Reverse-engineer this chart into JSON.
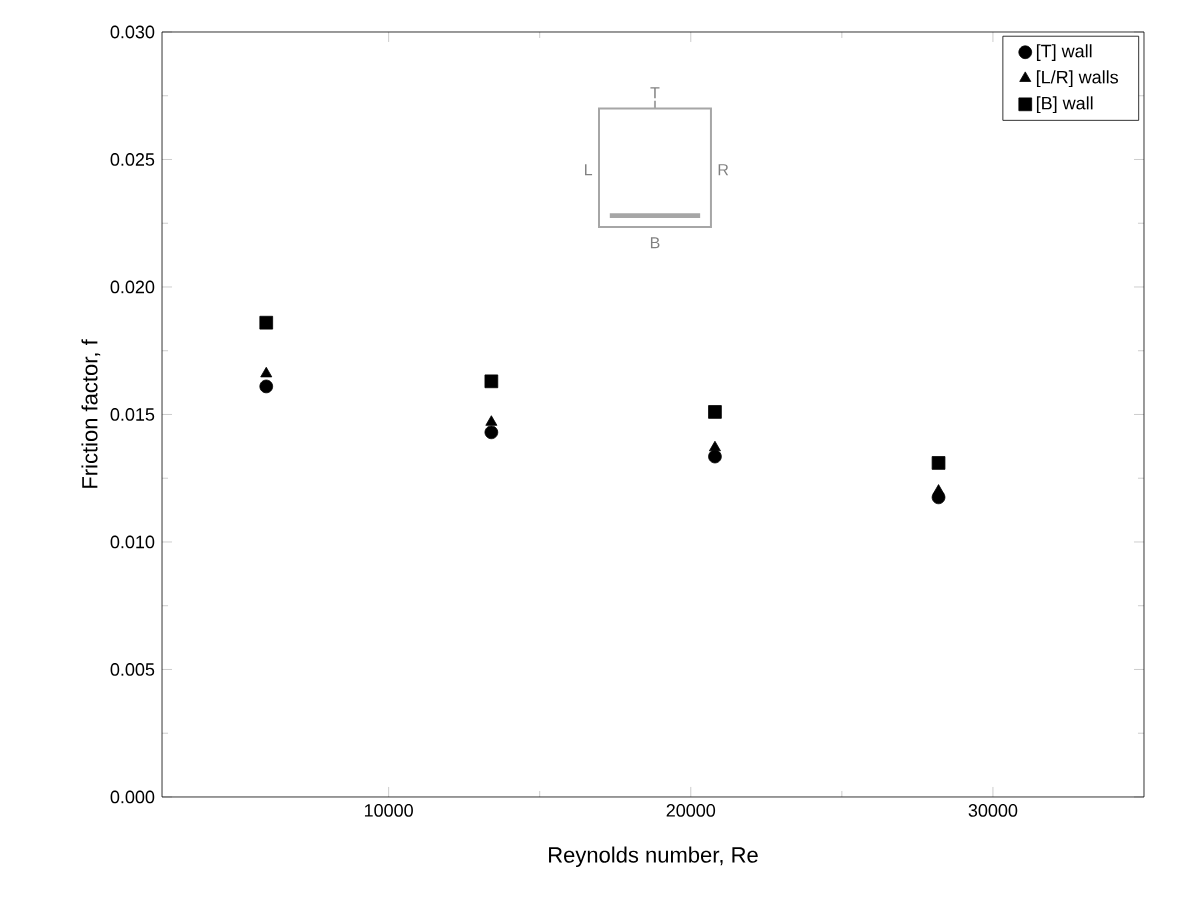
{
  "chart_data": {
    "type": "scatter",
    "xlabel": "Reynolds number, Re",
    "ylabel": "Friction factor, f",
    "x": [
      5950,
      13400,
      20800,
      28200
    ],
    "series": [
      {
        "name": "[T] wall",
        "color": "#000000",
        "marker": "circle",
        "values": [
          0.0161,
          0.0143,
          0.01335,
          0.01175
        ]
      },
      {
        "name": "[L/R] walls",
        "color": "#000000",
        "marker": "triangle",
        "values": [
          0.0166,
          0.0147,
          0.0137,
          0.012
        ]
      },
      {
        "name": "[B] wall",
        "color": "#000000",
        "marker": "square",
        "values": [
          0.0186,
          0.0163,
          0.0151,
          0.0131
        ]
      }
    ],
    "xlim": [
      2500,
      35000
    ],
    "xticks": [
      10000,
      20000,
      30000
    ],
    "ylim": [
      0,
      0.03
    ],
    "yticks": [
      {
        "value": 0,
        "label": "0.000"
      },
      {
        "value": 0.005,
        "label": "0.005"
      },
      {
        "value": 0.01,
        "label": "0.010"
      },
      {
        "value": 0.015,
        "label": "0.015"
      },
      {
        "value": 0.02,
        "label": "0.020"
      },
      {
        "value": 0.025,
        "label": "0.025"
      },
      {
        "value": 0.03,
        "label": "0.030"
      }
    ],
    "annotations": [
      "T",
      "L",
      "R",
      "B"
    ],
    "legend": "top right",
    "grid": false
  }
}
